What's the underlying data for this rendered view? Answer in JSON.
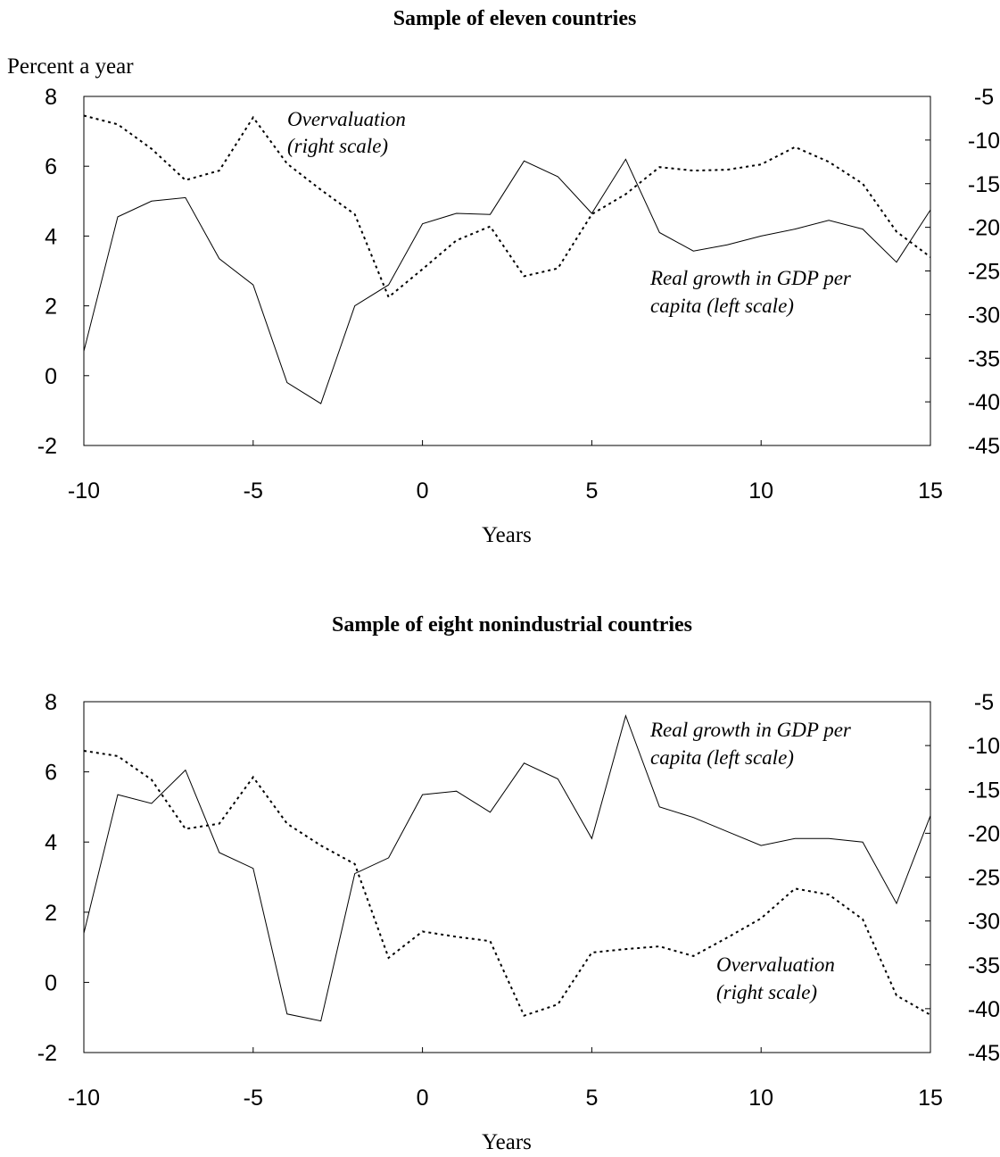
{
  "chart_data": [
    {
      "type": "line",
      "title": "Sample of eleven countries",
      "ylabel": "Percent a year",
      "xlabel": "Years",
      "xlim": [
        -10,
        15
      ],
      "xticks": [
        "-10",
        "-5",
        "0",
        "5",
        "10",
        "15"
      ],
      "ylim_left": [
        -2,
        8
      ],
      "yticks_left": [
        "8",
        "6",
        "4",
        "2",
        "0",
        "-2"
      ],
      "ylim_right": [
        -45,
        -5
      ],
      "yticks_right": [
        "-5",
        "-10",
        "-15",
        "-20",
        "-25",
        "-30",
        "-35",
        "-40",
        "-45"
      ],
      "grid": false,
      "annotations": {
        "overvaluation": [
          "Overvaluation",
          "(right scale)"
        ],
        "growth": [
          "Real growth in GDP per",
          "capita (left scale)"
        ]
      },
      "series": [
        {
          "axis": "left",
          "style": "solid",
          "x": [
            -10,
            -9,
            -8,
            -7,
            -6,
            -5,
            -4,
            -3,
            -2,
            -1,
            0,
            1,
            2,
            3,
            4,
            5,
            6,
            7,
            8,
            9,
            10,
            11,
            12,
            13,
            14,
            15
          ],
          "values": [
            0.7,
            4.55,
            5.0,
            5.1,
            3.35,
            2.6,
            -0.2,
            -0.8,
            2.0,
            2.6,
            4.35,
            4.65,
            4.62,
            6.15,
            5.7,
            4.65,
            6.2,
            4.1,
            3.57,
            3.75,
            4.0,
            4.2,
            4.45,
            4.2,
            3.25,
            4.75
          ]
        },
        {
          "axis": "right",
          "style": "dotted",
          "x": [
            -10,
            -9,
            -8,
            -7,
            -6,
            -5,
            -4,
            -3,
            -2,
            -1,
            0,
            1,
            2,
            3,
            4,
            5,
            6,
            7,
            8,
            9,
            10,
            11,
            12,
            13,
            14,
            15
          ],
          "values": [
            -7.2,
            -8.2,
            -11.0,
            -14.6,
            -13.5,
            -7.4,
            -12.7,
            -15.7,
            -18.5,
            -28.0,
            -24.8,
            -21.5,
            -19.9,
            -25.6,
            -24.7,
            -18.5,
            -16.2,
            -13.1,
            -13.5,
            -13.4,
            -12.8,
            -10.8,
            -12.5,
            -15.0,
            -20.5,
            -23.4
          ]
        }
      ]
    },
    {
      "type": "line",
      "title": "Sample of eight nonindustrial countries",
      "xlabel": "Years",
      "xlim": [
        -10,
        15
      ],
      "xticks": [
        "-10",
        "-5",
        "0",
        "5",
        "10",
        "15"
      ],
      "ylim_left": [
        -2,
        8
      ],
      "yticks_left": [
        "8",
        "6",
        "4",
        "2",
        "0",
        "-2"
      ],
      "ylim_right": [
        -45,
        -5
      ],
      "yticks_right": [
        "-5",
        "-10",
        "-15",
        "-20",
        "-25",
        "-30",
        "-35",
        "-40",
        "-45"
      ],
      "grid": false,
      "annotations": {
        "growth": [
          "Real growth in GDP per",
          "capita (left scale)"
        ],
        "overvaluation": [
          "Overvaluation",
          "(right scale)"
        ]
      },
      "series": [
        {
          "axis": "left",
          "style": "solid",
          "x": [
            -10,
            -9,
            -8,
            -7,
            -6,
            -5,
            -4,
            -3,
            -2,
            -1,
            0,
            1,
            2,
            3,
            4,
            5,
            6,
            7,
            8,
            9,
            10,
            11,
            12,
            13,
            14,
            15
          ],
          "values": [
            1.4,
            5.35,
            5.1,
            6.05,
            3.7,
            3.25,
            -0.9,
            -1.1,
            3.1,
            3.55,
            5.35,
            5.45,
            4.85,
            6.25,
            5.8,
            4.1,
            7.6,
            5.0,
            4.7,
            4.3,
            3.9,
            4.1,
            4.1,
            4.0,
            2.25,
            4.75
          ]
        },
        {
          "axis": "right",
          "style": "dotted",
          "x": [
            -10,
            -9,
            -8,
            -7,
            -6,
            -5,
            -4,
            -3,
            -2,
            -1,
            0,
            1,
            2,
            3,
            4,
            5,
            6,
            7,
            8,
            9,
            10,
            11,
            12,
            13,
            14,
            15
          ],
          "values": [
            -10.6,
            -11.2,
            -13.9,
            -19.5,
            -18.9,
            -13.6,
            -18.9,
            -21.4,
            -23.5,
            -34.2,
            -31.2,
            -31.8,
            -32.3,
            -40.8,
            -39.5,
            -33.6,
            -33.2,
            -32.9,
            -34.0,
            -31.9,
            -29.7,
            -26.3,
            -27.0,
            -29.8,
            -38.5,
            -40.7
          ]
        }
      ]
    }
  ]
}
